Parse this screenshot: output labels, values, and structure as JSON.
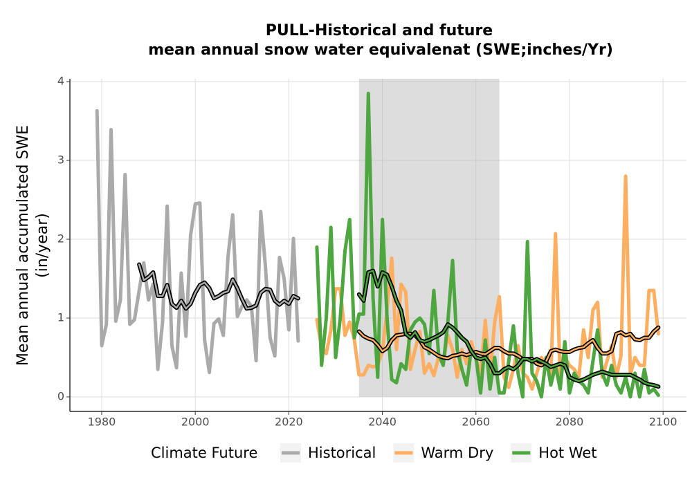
{
  "chart_data": {
    "type": "line",
    "title": [
      "PULL-Historical and future",
      "mean annual snow water equivalenat (SWE;inches/Yr)"
    ],
    "ylabel": [
      "Mean annual accumulated SWE",
      "(in/year)"
    ],
    "xlim": [
      1973.2,
      2105.0
    ],
    "ylim": [
      -0.184,
      4.035
    ],
    "xticks": [
      1980,
      2000,
      2020,
      2040,
      2060,
      2080,
      2100
    ],
    "yticks": [
      0,
      1,
      2,
      3,
      4
    ],
    "grid": true,
    "shaded_range": [
      2035,
      2065
    ],
    "legend_title": "Climate Future",
    "legend": "bottom",
    "series": [
      {
        "name": "Historical",
        "color": "#aaaaaa",
        "x": [
          1979,
          1980,
          1981,
          1982,
          1983,
          1984,
          1985,
          1986,
          1987,
          1988,
          1989,
          1990,
          1991,
          1992,
          1993,
          1994,
          1995,
          1996,
          1997,
          1998,
          1999,
          2000,
          2001,
          2002,
          2003,
          2004,
          2005,
          2006,
          2007,
          2008,
          2009,
          2010,
          2011,
          2012,
          2013,
          2014,
          2015,
          2016,
          2017,
          2018,
          2019,
          2020,
          2021,
          2022
        ],
        "values": [
          3.63,
          0.65,
          0.92,
          3.39,
          0.96,
          1.23,
          2.82,
          0.92,
          0.98,
          1.35,
          1.7,
          1.23,
          1.43,
          0.35,
          0.95,
          2.42,
          0.65,
          0.37,
          1.57,
          0.77,
          2.05,
          2.45,
          2.46,
          0.72,
          0.31,
          0.93,
          0.99,
          0.78,
          1.78,
          2.31,
          1.02,
          1.15,
          1.23,
          1.15,
          0.46,
          2.35,
          1.65,
          0.75,
          0.52,
          1.77,
          1.5,
          0.85,
          2.01,
          0.71
        ],
        "smooth_x": [
          1988,
          1989,
          1990,
          1991,
          1992,
          1993,
          1994,
          1995,
          1996,
          1997,
          1998,
          1999,
          2000,
          2001,
          2002,
          2003,
          2004,
          2005,
          2006,
          2007,
          2008,
          2009,
          2010,
          2011,
          2012,
          2013,
          2014,
          2015,
          2016,
          2017,
          2018,
          2019,
          2020,
          2021,
          2022
        ],
        "smooth_values": [
          1.68,
          1.48,
          1.52,
          1.58,
          1.28,
          1.28,
          1.42,
          1.18,
          1.13,
          1.22,
          1.12,
          1.18,
          1.32,
          1.42,
          1.45,
          1.38,
          1.25,
          1.28,
          1.32,
          1.34,
          1.49,
          1.38,
          1.24,
          1.12,
          1.13,
          1.16,
          1.32,
          1.37,
          1.36,
          1.22,
          1.17,
          1.22,
          1.18,
          1.28,
          1.25
        ]
      },
      {
        "name": "Warm Dry",
        "color": "#fdae61",
        "x": [
          2026,
          2027,
          2028,
          2029,
          2030,
          2031,
          2032,
          2033,
          2034,
          2035,
          2036,
          2037,
          2038,
          2039,
          2040,
          2041,
          2042,
          2043,
          2044,
          2045,
          2046,
          2047,
          2048,
          2049,
          2050,
          2051,
          2052,
          2053,
          2054,
          2055,
          2056,
          2057,
          2058,
          2059,
          2060,
          2061,
          2062,
          2063,
          2064,
          2065,
          2066,
          2067,
          2068,
          2069,
          2070,
          2071,
          2072,
          2073,
          2074,
          2075,
          2076,
          2077,
          2078,
          2079,
          2080,
          2081,
          2082,
          2083,
          2084,
          2085,
          2086,
          2087,
          2088,
          2089,
          2090,
          2091,
          2092,
          2093,
          2094,
          2095,
          2096,
          2097,
          2098,
          2099
        ],
        "values": [
          0.98,
          0.63,
          0.55,
          0.85,
          1.37,
          1.37,
          0.78,
          0.95,
          0.73,
          0.28,
          0.28,
          0.4,
          0.38,
          0.4,
          0.57,
          1.1,
          1.76,
          0.6,
          1.43,
          1.33,
          0.35,
          0.6,
          0.83,
          0.3,
          0.42,
          0.27,
          0.5,
          0.43,
          0.78,
          0.6,
          0.25,
          0.6,
          0.42,
          0.7,
          0.48,
          0.3,
          0.97,
          0.25,
          0.95,
          1.27,
          0.25,
          0.12,
          0.35,
          0.65,
          0.3,
          0.25,
          0.1,
          0.3,
          0.5,
          0.4,
          0.25,
          2.07,
          0.25,
          0.5,
          0.4,
          0.35,
          0.25,
          0.85,
          0.5,
          1.1,
          1.2,
          0.25,
          0.45,
          0.65,
          0.25,
          0.52,
          2.8,
          0.28,
          0.5,
          0.4,
          0.4,
          1.35,
          1.35,
          0.8
        ],
        "smooth_x": [
          2035,
          2036,
          2037,
          2038,
          2039,
          2040,
          2041,
          2042,
          2043,
          2044,
          2045,
          2046,
          2047,
          2048,
          2049,
          2050,
          2051,
          2052,
          2053,
          2054,
          2055,
          2056,
          2057,
          2058,
          2059,
          2060,
          2061,
          2062,
          2063,
          2064,
          2065,
          2066,
          2067,
          2068,
          2069,
          2070,
          2071,
          2072,
          2073,
          2074,
          2075,
          2076,
          2077,
          2078,
          2079,
          2080,
          2081,
          2082,
          2083,
          2084,
          2085,
          2086,
          2087,
          2088,
          2089,
          2090,
          2091,
          2092,
          2093,
          2094,
          2095,
          2096,
          2097,
          2098,
          2099
        ],
        "smooth_values": [
          0.83,
          0.77,
          0.74,
          0.72,
          0.66,
          0.58,
          0.62,
          0.72,
          0.78,
          0.79,
          0.8,
          0.8,
          0.78,
          0.72,
          0.63,
          0.6,
          0.56,
          0.52,
          0.5,
          0.49,
          0.52,
          0.53,
          0.55,
          0.53,
          0.55,
          0.57,
          0.55,
          0.54,
          0.58,
          0.62,
          0.62,
          0.58,
          0.55,
          0.55,
          0.52,
          0.48,
          0.48,
          0.48,
          0.42,
          0.4,
          0.45,
          0.58,
          0.6,
          0.58,
          0.57,
          0.57,
          0.6,
          0.62,
          0.63,
          0.68,
          0.72,
          0.62,
          0.55,
          0.55,
          0.58,
          0.8,
          0.82,
          0.78,
          0.8,
          0.73,
          0.72,
          0.75,
          0.75,
          0.83,
          0.88
        ]
      },
      {
        "name": "Hot Wet",
        "color": "#4da63f",
        "x": [
          2026,
          2027,
          2028,
          2029,
          2030,
          2031,
          2032,
          2033,
          2034,
          2035,
          2036,
          2037,
          2038,
          2039,
          2040,
          2041,
          2042,
          2043,
          2044,
          2045,
          2046,
          2047,
          2048,
          2049,
          2050,
          2051,
          2052,
          2053,
          2054,
          2055,
          2056,
          2057,
          2058,
          2059,
          2060,
          2061,
          2062,
          2063,
          2064,
          2065,
          2066,
          2067,
          2068,
          2069,
          2070,
          2071,
          2072,
          2073,
          2074,
          2075,
          2076,
          2077,
          2078,
          2079,
          2080,
          2081,
          2082,
          2083,
          2084,
          2085,
          2086,
          2087,
          2088,
          2089,
          2090,
          2091,
          2092,
          2093,
          2094,
          2095,
          2096,
          2097,
          2098,
          2099
        ],
        "values": [
          1.9,
          0.4,
          1.0,
          2.15,
          0.5,
          1.0,
          1.85,
          2.25,
          0.75,
          1.05,
          1.05,
          3.85,
          1.25,
          0.25,
          2.25,
          1.0,
          0.22,
          0.18,
          0.42,
          0.35,
          0.85,
          0.95,
          1.0,
          0.92,
          0.55,
          1.35,
          0.55,
          0.4,
          0.95,
          1.73,
          0.6,
          0.35,
          0.15,
          0.6,
          0.5,
          0.05,
          0.72,
          0.1,
          0.5,
          0.05,
          0.05,
          0.45,
          0.9,
          0.3,
          0.0,
          1.97,
          0.3,
          0.2,
          0.0,
          0.5,
          0.15,
          0.4,
          0.1,
          0.7,
          0.05,
          0.3,
          0.2,
          0.15,
          0.05,
          0.45,
          0.85,
          0.3,
          0.15,
          0.4,
          0.15,
          0.05,
          0.25,
          0.0,
          0.3,
          0.0,
          0.35,
          0.05,
          0.1,
          0.02
        ],
        "smooth_x": [
          2035,
          2036,
          2037,
          2038,
          2039,
          2040,
          2041,
          2042,
          2043,
          2044,
          2045,
          2046,
          2047,
          2048,
          2049,
          2050,
          2051,
          2052,
          2053,
          2054,
          2055,
          2056,
          2057,
          2058,
          2059,
          2060,
          2061,
          2062,
          2063,
          2064,
          2065,
          2066,
          2067,
          2068,
          2069,
          2070,
          2071,
          2072,
          2073,
          2074,
          2075,
          2076,
          2077,
          2078,
          2079,
          2080,
          2081,
          2082,
          2083,
          2084,
          2085,
          2086,
          2087,
          2088,
          2089,
          2090,
          2091,
          2092,
          2093,
          2094,
          2095,
          2096,
          2097,
          2098,
          2099
        ],
        "smooth_values": [
          1.3,
          1.22,
          1.58,
          1.6,
          1.4,
          1.58,
          1.55,
          1.4,
          1.22,
          1.1,
          0.8,
          0.75,
          0.82,
          0.72,
          0.7,
          0.72,
          0.75,
          0.78,
          0.82,
          0.92,
          0.88,
          0.82,
          0.75,
          0.7,
          0.58,
          0.5,
          0.48,
          0.5,
          0.42,
          0.3,
          0.3,
          0.35,
          0.38,
          0.35,
          0.4,
          0.48,
          0.48,
          0.45,
          0.48,
          0.45,
          0.42,
          0.38,
          0.4,
          0.42,
          0.4,
          0.25,
          0.22,
          0.2,
          0.22,
          0.25,
          0.28,
          0.3,
          0.32,
          0.3,
          0.28,
          0.28,
          0.28,
          0.28,
          0.28,
          0.25,
          0.22,
          0.18,
          0.16,
          0.15,
          0.13
        ]
      }
    ]
  }
}
